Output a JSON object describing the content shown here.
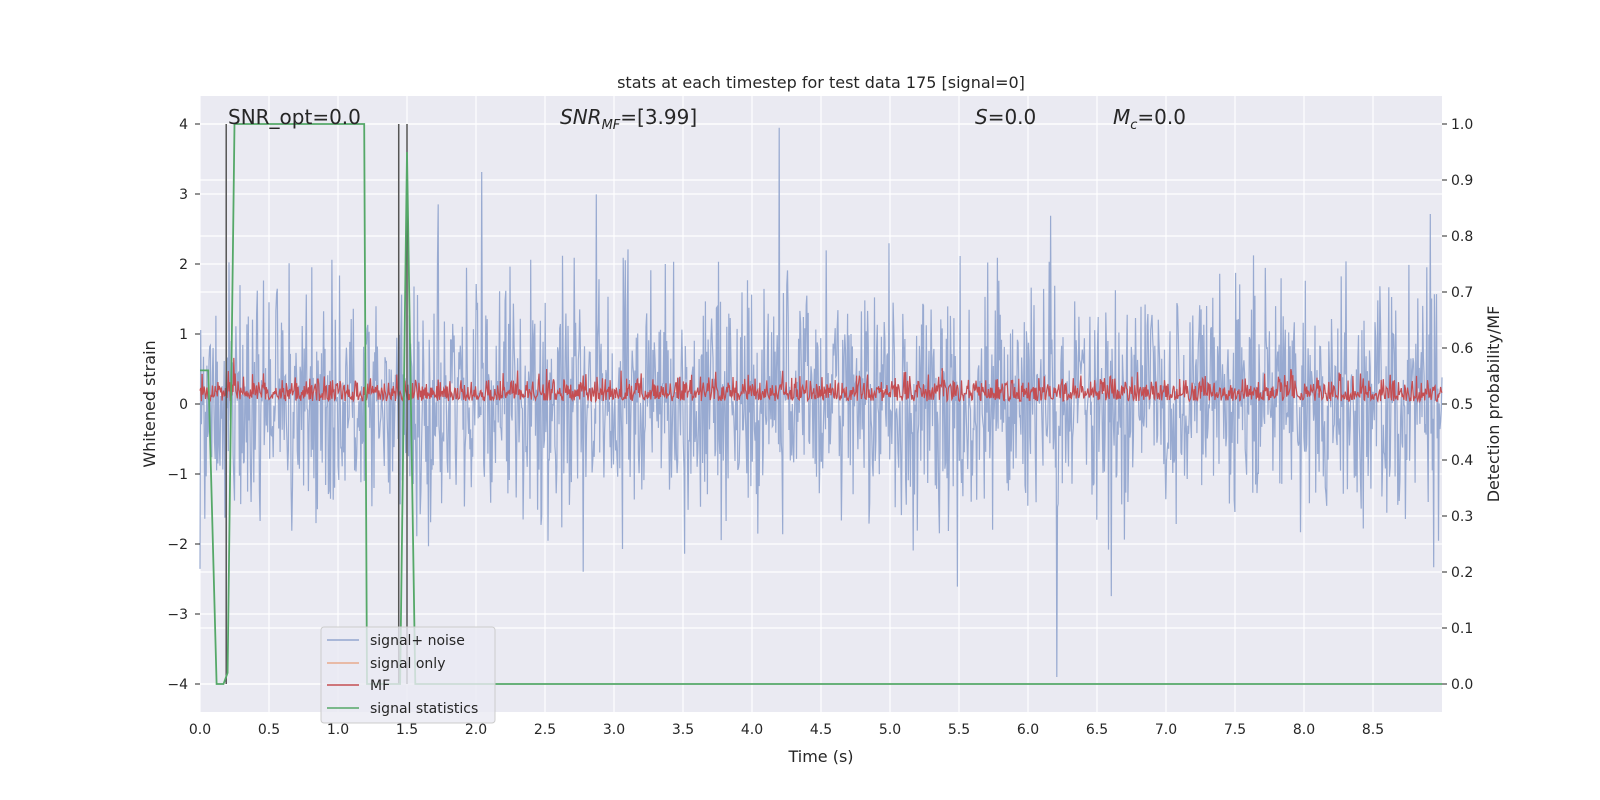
{
  "chart_data": {
    "type": "line",
    "title": "stats at each timestep for test data 175 [signal=0]",
    "xlabel": "Time (s)",
    "ylabel": "Whitened strain",
    "y2label": "Detection probability/MF",
    "xlim": [
      0.0,
      9.0
    ],
    "ylim": [
      -4.4,
      4.4
    ],
    "y2lim": [
      -0.05,
      1.05
    ],
    "xticks": [
      "0.0",
      "0.5",
      "1.0",
      "1.5",
      "2.0",
      "2.5",
      "3.0",
      "3.5",
      "4.0",
      "4.5",
      "5.0",
      "5.5",
      "6.0",
      "6.5",
      "7.0",
      "7.5",
      "8.0",
      "8.5"
    ],
    "yticks": [
      "4",
      "3",
      "2",
      "1",
      "0",
      "−1",
      "−2",
      "−3",
      "−4"
    ],
    "y2ticks": [
      "1.0",
      "0.9",
      "0.8",
      "0.7",
      "0.6",
      "0.5",
      "0.4",
      "0.3",
      "0.2",
      "0.1",
      "0.0"
    ],
    "grid": true,
    "legend_placement": "lower-left",
    "annotations": {
      "snr_opt": "SNR_opt=0.0",
      "snr_mf_main": "SNR",
      "snr_mf_sub": "MF",
      "snr_mf_val": "=[3.99]",
      "s_main": "S",
      "s_val": "=0.0",
      "mc_main": "M",
      "mc_sub": "c",
      "mc_val": "=0.0"
    },
    "vertical_lines_x": [
      0.19,
      1.44,
      1.5
    ],
    "series": [
      {
        "name": "signal+ noise",
        "color": "#93a6cf",
        "axis": "left",
        "description_values": {
          "amplitude_envelope": [
            -3.5,
            4.0
          ],
          "min": -3.9,
          "max": 4.0
        }
      },
      {
        "name": "signal only",
        "color": "#e8a98c",
        "axis": "left",
        "values": [
          0.0
        ]
      },
      {
        "name": "MF",
        "color": "#c44e52",
        "axis": "right",
        "range": [
          0.505,
          0.575
        ],
        "max": 0.62
      },
      {
        "name": "signal statistics",
        "color": "#55a868",
        "axis": "right",
        "x": [
          0.0,
          0.06,
          0.12,
          0.17,
          0.2,
          0.25,
          0.3,
          1.0,
          1.19,
          1.21,
          1.4,
          1.45,
          1.5,
          1.56,
          9.0
        ],
        "values": [
          0.56,
          0.56,
          0.0,
          0.0,
          0.02,
          1.0,
          1.0,
          1.0,
          1.0,
          0.0,
          0.0,
          0.0,
          0.95,
          0.0,
          0.0
        ]
      }
    ]
  },
  "colors": {
    "background": "#eaeaf2",
    "grid": "#ffffff",
    "noise": "#93a6cf",
    "signal": "#e8a98c",
    "mf": "#c44e52",
    "stats": "#55a868",
    "vline": "#555555"
  }
}
